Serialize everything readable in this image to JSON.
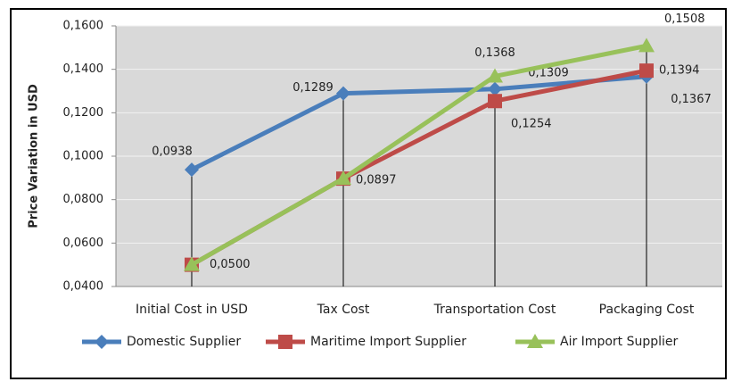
{
  "chart_data": {
    "type": "line",
    "y_label": "Price Variation in USD",
    "categories": [
      "Initial Cost in USD",
      "Tax Cost",
      "Transportation Cost",
      "Packaging Cost"
    ],
    "series": [
      {
        "name": "Domestic Supplier",
        "color": "#4a7ebb",
        "marker": "diamond",
        "values": [
          0.0938,
          0.1289,
          0.1309,
          0.1367
        ],
        "value_labels": [
          "0,0938",
          "0,1289",
          "0,1309",
          "0,1367"
        ]
      },
      {
        "name": "Maritime Import Supplier",
        "color": "#be4b48",
        "marker": "square",
        "values": [
          0.05,
          0.0897,
          0.1254,
          0.1394
        ],
        "value_labels": [
          "0,0500",
          "0,0897",
          "0,1254",
          "0,1394"
        ]
      },
      {
        "name": "Air Import Supplier",
        "color": "#98c15a",
        "marker": "triangle",
        "values": [
          0.05,
          0.0897,
          0.1368,
          0.1508
        ],
        "value_labels": [
          null,
          null,
          "0,1368",
          "0,1508"
        ]
      }
    ],
    "ylim": [
      0.04,
      0.16
    ],
    "yticks": [
      {
        "value": 0.04,
        "label": "0,0400"
      },
      {
        "value": 0.06,
        "label": "0,0600"
      },
      {
        "value": 0.08,
        "label": "0,0800"
      },
      {
        "value": 0.1,
        "label": "0,1000"
      },
      {
        "value": 0.12,
        "label": "0,1200"
      },
      {
        "value": 0.14,
        "label": "0,1400"
      },
      {
        "value": 0.16,
        "label": "0,1600"
      }
    ],
    "grid": true,
    "drop_lines": true,
    "legend": "bottom"
  }
}
